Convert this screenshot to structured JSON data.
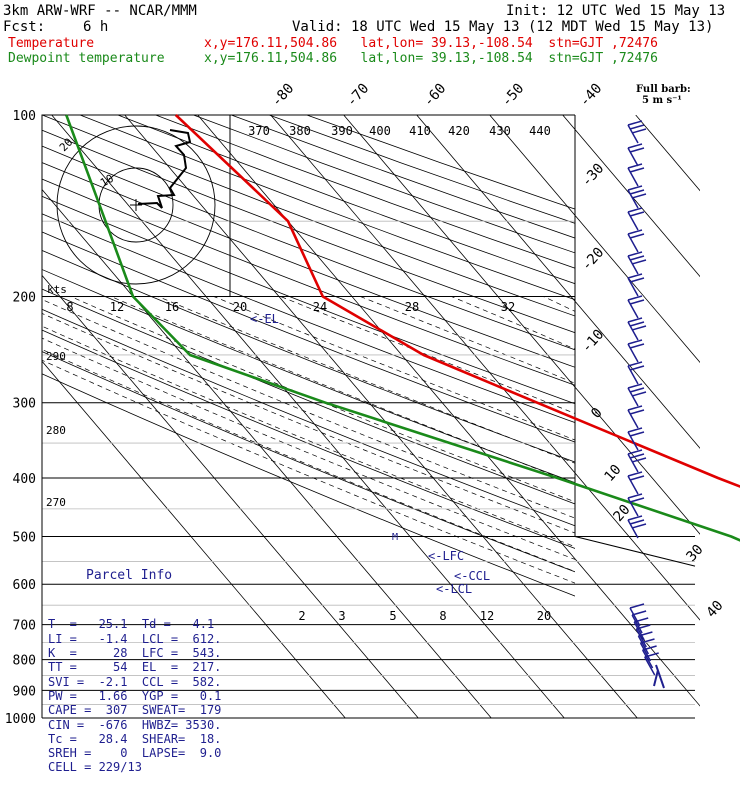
{
  "header": {
    "model": "3km ARW-WRF -- NCAR/MMM",
    "init": "Init: 12 UTC Wed 15 May 13",
    "fcst_label": "Fcst:",
    "fcst_value": "6 h",
    "valid": "Valid: 18 UTC Wed 15 May 13 (12 MDT Wed 15 May 13)",
    "temp_label": "Temperature",
    "dew_label": "Dewpoint temperature",
    "temp_loc": "x,y=176.11,504.86   lat,lon= 39.13,-108.54  stn=GJT ,72476",
    "dew_loc": "x,y=176.11,504.86   lat,lon= 39.13,-108.54  stn=GJT ,72476"
  },
  "barb_legend": {
    "line1": "Full barb:",
    "line2": "5 m s⁻¹"
  },
  "chart_data": {
    "type": "line",
    "pressure_levels": [
      "100",
      "200",
      "300",
      "400",
      "500",
      "600",
      "700",
      "800",
      "900",
      "1000"
    ],
    "isotherm_labels": [
      "-80",
      "-70",
      "-60",
      "-50",
      "-40",
      "-30",
      "-20",
      "-10",
      "0",
      "10",
      "20",
      "30",
      "40"
    ],
    "theta_labels": [
      "370",
      "380",
      "390",
      "400",
      "410",
      "420",
      "430",
      "440"
    ],
    "mixing_ratio_labels": [
      "2",
      "3",
      "5",
      "8",
      "12",
      "20"
    ],
    "wind_speed_labels": [
      "8",
      "12",
      "16",
      "20",
      "24",
      "28",
      "32"
    ],
    "wind_speed_unit": "kts",
    "theta_e_labels": [
      "290",
      "280",
      "270"
    ],
    "hodograph_ring_labels": [
      "10",
      "20"
    ],
    "series": [
      {
        "name": "Temperature",
        "color": "#e00000",
        "points": [
          [
            100,
            -53
          ],
          [
            150,
            -50
          ],
          [
            200,
            -54
          ],
          [
            250,
            -47
          ],
          [
            300,
            -37
          ],
          [
            400,
            -21
          ],
          [
            500,
            -7
          ],
          [
            600,
            2
          ],
          [
            700,
            10
          ],
          [
            800,
            21
          ],
          [
            850,
            25
          ]
        ]
      },
      {
        "name": "Dewpoint temperature",
        "color": "#1a8a1a",
        "points": [
          [
            100,
            -68
          ],
          [
            150,
            -75
          ],
          [
            200,
            -80
          ],
          [
            250,
            -79
          ],
          [
            300,
            -66
          ],
          [
            400,
            -43
          ],
          [
            500,
            -26
          ],
          [
            560,
            -20
          ],
          [
            600,
            -21
          ],
          [
            700,
            -13
          ],
          [
            780,
            -5
          ],
          [
            850,
            4
          ]
        ]
      }
    ],
    "annotations": [
      "<-EL",
      "<-LFC",
      "<-CCL",
      "<-LCL"
    ]
  },
  "parcel": {
    "title": "Parcel Info",
    "rows": [
      "T  =   25.1  Td =   4.1",
      "LI =   -1.4  LCL =  612.",
      "K  =     28  LFC =  543.",
      "TT =     54  EL  =  217.",
      "SVI =  -2.1  CCL =  582.",
      "PW =   1.66  YGP =   0.1",
      "CAPE =  307  SWEAT=  179",
      "CIN =  -676  HWBZ= 3530.",
      "Tc =   28.4  SHEAR=  18.",
      "SREH =    0  LAPSE=  9.0",
      "CELL = 229/13"
    ]
  }
}
